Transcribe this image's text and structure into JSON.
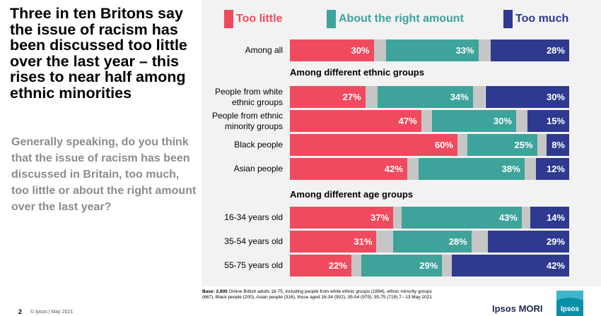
{
  "headline": "Three in ten Britons say the issue of racism has been discussed too little over the last year – this rises to near half among ethnic minorities",
  "question": "Generally speaking, do you think that the issue of racism has been discussed in Britain, too much, too little or about the right amount over the last year?",
  "footer": {
    "page": "2",
    "copyright": "© Ipsos | May 2021"
  },
  "brand": "Ipsos MORI",
  "logo_text": "Ipsos",
  "base_note": {
    "label": "Base:",
    "count": "2,600",
    "text": " Online British adults 16-75, including people from white ethnic groups (1894), ethnic minority groups (667), Black people (200), Asian people (316), those aged 16-34 (902), 35-54 (979), 55-75 (719)  7– 13 May 2021"
  },
  "colors": {
    "too_little": "#f04a5e",
    "about_right": "#3da39b",
    "too_much": "#2e3a8f",
    "dont_know": "#c6c6c6"
  },
  "chart_data": {
    "type": "bar",
    "orientation": "horizontal",
    "stacked": true,
    "unit": "%",
    "legend": [
      {
        "key": "too_little",
        "label": "Too little"
      },
      {
        "key": "about_right",
        "label": "About the right amount"
      },
      {
        "key": "too_much",
        "label": "Too much"
      }
    ],
    "groups": [
      {
        "heading": "",
        "rows": [
          {
            "label": "Among all",
            "too_little": 30,
            "about_right": 33,
            "too_much": 28,
            "dont_know": 9
          }
        ]
      },
      {
        "heading": "Among different ethnic groups",
        "rows": [
          {
            "label": "People from white ethnic groups",
            "too_little": 27,
            "about_right": 34,
            "too_much": 30,
            "dont_know": 9
          },
          {
            "label": "People from ethnic minority groups",
            "too_little": 47,
            "about_right": 30,
            "too_much": 15,
            "dont_know": 8
          },
          {
            "label": "Black people",
            "too_little": 60,
            "about_right": 25,
            "too_much": 8,
            "dont_know": 7
          },
          {
            "label": "Asian people",
            "too_little": 42,
            "about_right": 38,
            "too_much": 12,
            "dont_know": 8
          }
        ]
      },
      {
        "heading": "Among different age groups",
        "rows": [
          {
            "label": "16-34 years old",
            "too_little": 37,
            "about_right": 43,
            "too_much": 14,
            "dont_know": 6
          },
          {
            "label": "35-54 years old",
            "too_little": 31,
            "about_right": 28,
            "too_much": 29,
            "dont_know": 12
          },
          {
            "label": "55-75 years old",
            "too_little": 22,
            "about_right": 29,
            "too_much": 42,
            "dont_know": 7
          }
        ]
      }
    ]
  }
}
